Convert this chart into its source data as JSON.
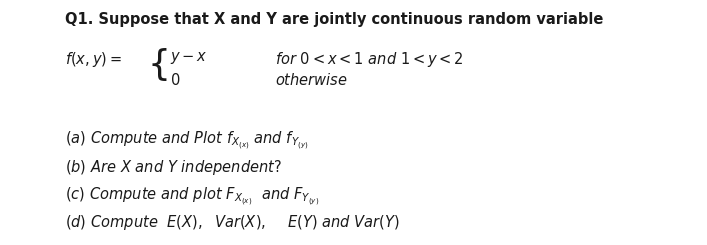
{
  "background_color": "#ffffff",
  "title_line": "Q1. Suppose that X and Y are jointly continuous random variable",
  "part_b": "(b) Are X and Y independent?",
  "font_size_title": 10.5,
  "font_size_body": 10.5,
  "text_color": "#1a1a1a",
  "lm_abs": 65,
  "fig_w": 7.07,
  "fig_h": 2.45,
  "dpi": 100
}
